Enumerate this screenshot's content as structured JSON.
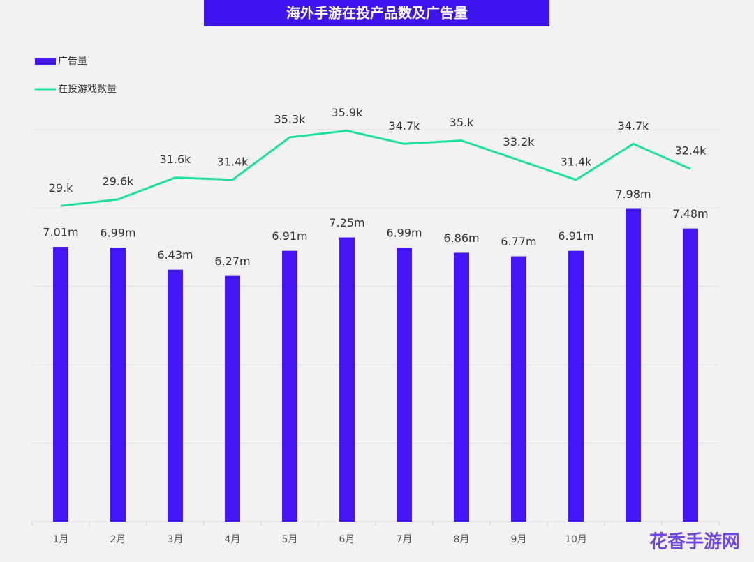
{
  "chart_data": {
    "type": "bar-line",
    "title": "海外手游在投产品数及广告量",
    "categories": [
      "1月",
      "2月",
      "3月",
      "4月",
      "5月",
      "6月",
      "7月",
      "8月",
      "9月",
      "10月",
      null,
      null
    ],
    "series": [
      {
        "name": "广告量",
        "type": "bar",
        "color": "#4416f5",
        "values": [
          7.01,
          6.99,
          6.43,
          6.27,
          6.91,
          7.25,
          6.99,
          6.86,
          6.77,
          6.91,
          7.98,
          7.48
        ],
        "value_labels": [
          "7.01m",
          "6.99m",
          "6.43m",
          "6.27m",
          "6.91m",
          "7.25m",
          "6.99m",
          "6.86m",
          "6.77m",
          "6.91m",
          "7.98m",
          "7.48m"
        ]
      },
      {
        "name": "在投游戏数量",
        "type": "line",
        "axis": "y2",
        "color": "#1de0a0",
        "values": [
          29,
          29.6,
          31.6,
          31.4,
          35.3,
          35.9,
          34.7,
          35,
          33.2,
          31.4,
          34.7,
          32.4
        ],
        "value_labels": [
          "29.k",
          "29.6k",
          "31.6k",
          "31.4k",
          "35.3k",
          "35.9k",
          "34.7k",
          "35.k",
          "33.2k",
          "31.4k",
          "34.7k",
          "32.4k"
        ]
      }
    ],
    "ylim": [
      0,
      10
    ],
    "yticks": [
      0,
      2,
      4,
      6,
      8,
      10
    ],
    "y2lim": [
      0,
      36
    ],
    "grid": true,
    "legend": "top-left",
    "watermark": "花香手游网"
  }
}
